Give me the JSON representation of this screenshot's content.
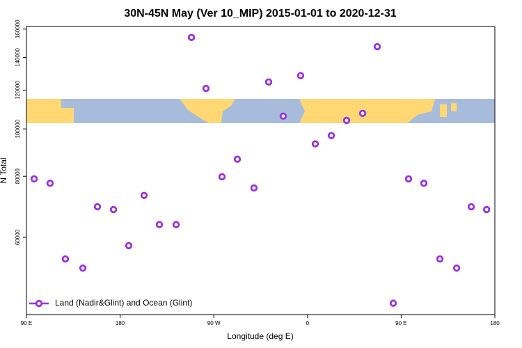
{
  "chart_data": {
    "type": "scatter",
    "title": "30N-45N May (Ver 10_MIP)   2015-01-01 to 2020-12-31",
    "xlabel": "Longitude (deg E)",
    "ylabel": "N Total",
    "yscale": "log",
    "xlim": [
      90,
      540
    ],
    "ylim": [
      41700,
      162000
    ],
    "xticks": [
      {
        "value": 90,
        "label": "90 E"
      },
      180,
      {
        "value": 270,
        "label": "90 W"
      },
      {
        "value": 360,
        "label": "0"
      },
      {
        "value": 450,
        "label": "90 E"
      },
      {
        "value": 540,
        "label": "180"
      }
    ],
    "yticks": [
      60000,
      80000,
      100000,
      120000,
      140000,
      160000
    ],
    "legend": "bottom-left",
    "series": [
      {
        "name": "Land (Nadir&Glint) and Ocean (Glint)",
        "color": "#9b30e0",
        "x": [
          97.4,
          112.7,
          127.4,
          144.2,
          158.2,
          173.6,
          188.3,
          203.0,
          217.7,
          233.8,
          248.5,
          262.5,
          277.9,
          292.6,
          308.6,
          322.7,
          336.7,
          353.4,
          367.5,
          382.9,
          397.6,
          413.0,
          427.0,
          442.4,
          457.1,
          471.8,
          487.2,
          503.3,
          517.3,
          532.1
        ],
        "values": [
          79000,
          77400,
          54200,
          51900,
          69300,
          68400,
          57700,
          73100,
          63700,
          63700,
          153800,
          121000,
          79800,
          86700,
          75700,
          124700,
          106200,
          128500,
          93200,
          96900,
          104100,
          107600,
          147300,
          44000,
          79000,
          77400,
          54200,
          51900,
          69300,
          68400
        ]
      }
    ]
  }
}
